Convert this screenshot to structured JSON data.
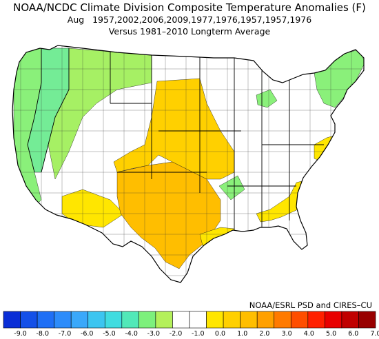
{
  "title": "NOAA/NCDC Climate Division Composite Temperature Anomalies (F)",
  "subtitle": "Aug   1957,2002,2006,2009,1977,1976,1957,1957,1976",
  "subtitle2": "Versus 1981–2010 Longterm Average",
  "credit": "NOAA/ESRL PSD and CIRES–CU",
  "colorbar": {
    "labels": [
      "-9.0",
      "-8.0",
      "-7.0",
      "-6.0",
      "-5.0",
      "-4.0",
      "-3.0",
      "-2.0",
      "-1.0",
      "0.0",
      "1.0",
      "2.0",
      "3.0",
      "4.0",
      "5.0",
      "6.0",
      "7.0"
    ],
    "colors": [
      "#0a2ed6",
      "#1450e8",
      "#1f6ff5",
      "#2d8cfa",
      "#3aa8fa",
      "#3cc5f0",
      "#40dce0",
      "#52e8b8",
      "#7df07c",
      "#b4f05a",
      "#ffffff",
      "#ffffff",
      "#ffe600",
      "#ffd000",
      "#ffbe00",
      "#ffa000",
      "#ff7a00",
      "#ff4e00",
      "#ff2000",
      "#e80000",
      "#c00000",
      "#980000"
    ]
  },
  "anomaly_colors": {
    "green_1": "#a6f064",
    "green_2": "#8af07a",
    "green_3": "#74ec96",
    "yellow_1": "#ffe600",
    "yellow_2": "#ffd000",
    "orange_1": "#ffbe00",
    "neutral": "#ffffff"
  }
}
